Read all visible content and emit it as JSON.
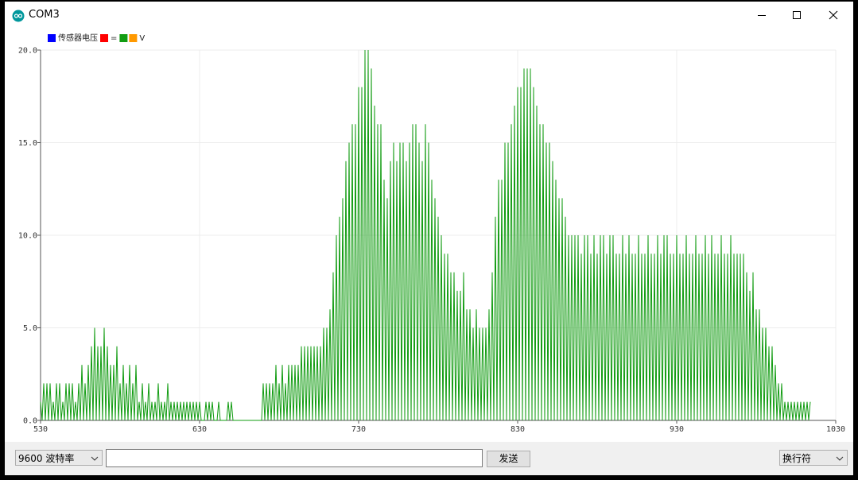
{
  "window": {
    "title": "COM3"
  },
  "chart_data": {
    "type": "line",
    "series": [
      {
        "name": "传感器电压",
        "color": "#0000ff"
      },
      {
        "name": "=",
        "color": "#ff0000"
      },
      {
        "color": "#129c12",
        "values": [
          1,
          0,
          2,
          0,
          2,
          0,
          2,
          0,
          1,
          0,
          2,
          0,
          2,
          0,
          1,
          0,
          2,
          0,
          2,
          0,
          2,
          0,
          1,
          0,
          2,
          0,
          3,
          0,
          2,
          0,
          3,
          0,
          4,
          0,
          5,
          0,
          4,
          0,
          4,
          0,
          5,
          0,
          4,
          0,
          3,
          0,
          3,
          0,
          4,
          0,
          2,
          0,
          3,
          0,
          2,
          0,
          3,
          0,
          2,
          0,
          3,
          0,
          1,
          0,
          2,
          0,
          1,
          0,
          2,
          0,
          1,
          0,
          1,
          0,
          2,
          0,
          1,
          0,
          1,
          0,
          2,
          0,
          1,
          0,
          1,
          0,
          1,
          0,
          1,
          0,
          1,
          0,
          1,
          0,
          1,
          0,
          1,
          0,
          1,
          0,
          1,
          0,
          0,
          0,
          1,
          0,
          1,
          0,
          1,
          0,
          0,
          0,
          1,
          0,
          0,
          0,
          0,
          0,
          1,
          0,
          1,
          0,
          0,
          0,
          0,
          0,
          0,
          0,
          0,
          0,
          0,
          0,
          0,
          0,
          0,
          0,
          0,
          0,
          0,
          0,
          2,
          0,
          2,
          0,
          2,
          0,
          2,
          0,
          3,
          0,
          2,
          0,
          3,
          0,
          2,
          0,
          3,
          0,
          3,
          0,
          3,
          0,
          3,
          0,
          4,
          0,
          4,
          0,
          4,
          0,
          4,
          0,
          4,
          0,
          4,
          0,
          4,
          0,
          5,
          0,
          5,
          0,
          6,
          0,
          8,
          0,
          10,
          0,
          11,
          0,
          12,
          0,
          14,
          0,
          15,
          0,
          16,
          0,
          16,
          0,
          18,
          0,
          18,
          0,
          20,
          0,
          20,
          0,
          19,
          0,
          17,
          0,
          16,
          0,
          16,
          0,
          13,
          0,
          12,
          0,
          14,
          0,
          15,
          0,
          14,
          0,
          15,
          0,
          15,
          0,
          14,
          0,
          15,
          0,
          16,
          0,
          16,
          0,
          15,
          0,
          14,
          0,
          16,
          0,
          15,
          0,
          13,
          0,
          12,
          0,
          11,
          0,
          10,
          0,
          9,
          0,
          9,
          0,
          8,
          0,
          8,
          0,
          7,
          0,
          7,
          0,
          8,
          0,
          6,
          0,
          6,
          0,
          5,
          0,
          6,
          0,
          5,
          0,
          5,
          0,
          5,
          0,
          6,
          0,
          8,
          0,
          11,
          0,
          13,
          0,
          13,
          0,
          15,
          0,
          15,
          0,
          16,
          0,
          17,
          0,
          18,
          0,
          18,
          0,
          19,
          0,
          19,
          0,
          19,
          0,
          18,
          0,
          17,
          0,
          16,
          0,
          16,
          0,
          15,
          0,
          15,
          0,
          14,
          0,
          13,
          0,
          12,
          0,
          12,
          0,
          11,
          0,
          10,
          0,
          10,
          0,
          10,
          0,
          10,
          0,
          9,
          0,
          10,
          0,
          10,
          0,
          9,
          0,
          10,
          0,
          9,
          0,
          10,
          0,
          10,
          0,
          9,
          0,
          10,
          0,
          10,
          0,
          9,
          0,
          9,
          0,
          10,
          0,
          9,
          0,
          10,
          0,
          9,
          0,
          9,
          0,
          10,
          0,
          9,
          0,
          9,
          0,
          10,
          0,
          9,
          0,
          9,
          0,
          10,
          0,
          9,
          0,
          10,
          0,
          10,
          0,
          9,
          0,
          9,
          0,
          10,
          0,
          9,
          0,
          9,
          0,
          10,
          0,
          9,
          0,
          9,
          0,
          10,
          0,
          9,
          0,
          9,
          0,
          10,
          0,
          9,
          0,
          10,
          0,
          9,
          0,
          9,
          0,
          10,
          0,
          9,
          0,
          9,
          0,
          10,
          0,
          9,
          0,
          9,
          0,
          9,
          0,
          9,
          0,
          8,
          0,
          7,
          0,
          8,
          0,
          6,
          0,
          6,
          0,
          5,
          0,
          5,
          0,
          4,
          0,
          4,
          0,
          3,
          0,
          2,
          0,
          2,
          0,
          1,
          0,
          1,
          0,
          1,
          0,
          1,
          0,
          1,
          0,
          1,
          0,
          1,
          0,
          1,
          0,
          1
        ]
      },
      {
        "name": "V",
        "color": "#ff9900"
      }
    ],
    "x": [
      530,
      531,
      532,
      533,
      534,
      535,
      536,
      537,
      538,
      539,
      540,
      541,
      542,
      543,
      544,
      545,
      546,
      547,
      548,
      549,
      550,
      551,
      552,
      553,
      554,
      555,
      556,
      557,
      558,
      559,
      560,
      561,
      562,
      563,
      564,
      565,
      566,
      567,
      568,
      569,
      570,
      571,
      572,
      573,
      574,
      575,
      576,
      577,
      578,
      579,
      580,
      581,
      582,
      583,
      584,
      585,
      586,
      587,
      588,
      589,
      590,
      591,
      592,
      593,
      594,
      595,
      596,
      597,
      598,
      599,
      600,
      601,
      602,
      603,
      604,
      605,
      606,
      607,
      608,
      609,
      610,
      611,
      612,
      613,
      614,
      615,
      616,
      617,
      618,
      619,
      620,
      621,
      622,
      623,
      624,
      625,
      626,
      627,
      628,
      629,
      630,
      631,
      632,
      633,
      634,
      635,
      636,
      637,
      638,
      639,
      640,
      641,
      642,
      643,
      644,
      645,
      646,
      647,
      648,
      649,
      650,
      651,
      652,
      653,
      654,
      655,
      656,
      657,
      658,
      659,
      660,
      661,
      662,
      663,
      664,
      665,
      666,
      667,
      668,
      669,
      670,
      671,
      672,
      673,
      674,
      675,
      676,
      677,
      678,
      679,
      680,
      681,
      682,
      683,
      684,
      685,
      686,
      687,
      688,
      689,
      690,
      691,
      692,
      693,
      694,
      695,
      696,
      697,
      698,
      699,
      700,
      701,
      702,
      703,
      704,
      705,
      706,
      707,
      708,
      709,
      710,
      711,
      712,
      713,
      714,
      715,
      716,
      717,
      718,
      719,
      720,
      721,
      722,
      723,
      724,
      725,
      726,
      727,
      728,
      729,
      730,
      731,
      732,
      733,
      734,
      735,
      736,
      737,
      738,
      739,
      740,
      741,
      742,
      743,
      744,
      745,
      746,
      747,
      748,
      749,
      750,
      751,
      752,
      753,
      754,
      755,
      756,
      757,
      758,
      759,
      760,
      761,
      762,
      763,
      764,
      765,
      766,
      767,
      768,
      769,
      770,
      771,
      772,
      773,
      774,
      775,
      776,
      777,
      778,
      779,
      780,
      781,
      782,
      783,
      784,
      785,
      786,
      787,
      788,
      789,
      790,
      791,
      792,
      793,
      794,
      795,
      796,
      797,
      798,
      799,
      800,
      801,
      802,
      803,
      804,
      805,
      806,
      807,
      808,
      809,
      810,
      811,
      812,
      813,
      814,
      815,
      816,
      817,
      818,
      819,
      820,
      821,
      822,
      823,
      824,
      825,
      826,
      827,
      828,
      829,
      830,
      831,
      832,
      833,
      834,
      835,
      836,
      837,
      838,
      839,
      840,
      841,
      842,
      843,
      844,
      845,
      846,
      847,
      848,
      849,
      850,
      851,
      852,
      853,
      854,
      855,
      856,
      857,
      858,
      859,
      860,
      861,
      862,
      863,
      864,
      865,
      866,
      867,
      868,
      869,
      870,
      871,
      872,
      873,
      874,
      875,
      876,
      877,
      878,
      879,
      880,
      881,
      882,
      883,
      884,
      885,
      886,
      887,
      888,
      889,
      890,
      891,
      892,
      893,
      894,
      895,
      896,
      897,
      898,
      899,
      900,
      901,
      902,
      903,
      904,
      905,
      906,
      907,
      908,
      909,
      910,
      911,
      912,
      913,
      914,
      915,
      916,
      917,
      918,
      919,
      920,
      921,
      922,
      923,
      924,
      925,
      926,
      927,
      928,
      929,
      930,
      931,
      932,
      933,
      934,
      935,
      936,
      937,
      938,
      939,
      940,
      941,
      942,
      943,
      944,
      945,
      946,
      947,
      948,
      949,
      950,
      951,
      952,
      953,
      954,
      955,
      956,
      957,
      958,
      959,
      960,
      961,
      962,
      963,
      964,
      965,
      966,
      967,
      968,
      969,
      970,
      971,
      972,
      973,
      974,
      975,
      976,
      977,
      978,
      979,
      980,
      981,
      982,
      983,
      984,
      985,
      986,
      987,
      988,
      989,
      990,
      991,
      992,
      993,
      994,
      995,
      996,
      997,
      998,
      999,
      1000,
      1001,
      1002,
      1003,
      1004,
      1005,
      1006,
      1007,
      1008,
      1009,
      1010,
      1011,
      1012,
      1013,
      1014
    ],
    "xlim": [
      530,
      1030
    ],
    "xticks": [
      530,
      630,
      730,
      830,
      930,
      1030
    ],
    "ylim": [
      0,
      20
    ],
    "yticks": [
      {
        "value": 0,
        "label": "0.0"
      },
      {
        "value": 5,
        "label": "5.0"
      },
      {
        "value": 10,
        "label": "10.0"
      },
      {
        "value": 15,
        "label": "15.0"
      },
      {
        "value": 20,
        "label": "20.0"
      }
    ],
    "grid": true
  },
  "controls": {
    "baud_rate": "9600 波特率",
    "send": "发送",
    "line_ending": "换行符"
  }
}
